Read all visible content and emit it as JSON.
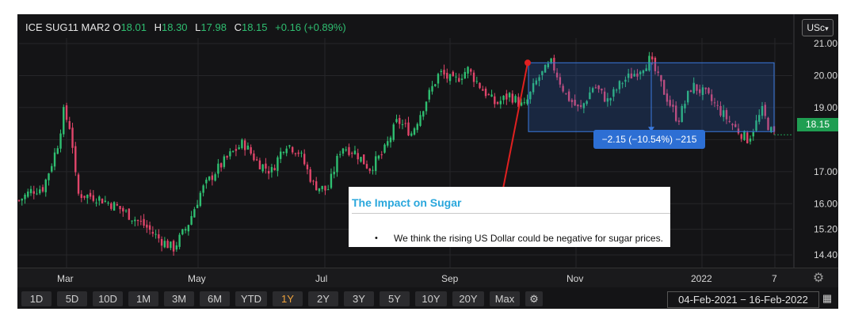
{
  "header": {
    "symbol": "ICE SUG11 MAR2",
    "open_label": "O",
    "open": "18.01",
    "high_label": "H",
    "high": "18.30",
    "low_label": "L",
    "low": "17.98",
    "close_label": "C",
    "close": "18.15",
    "change": "+0.16 (+0.89%)"
  },
  "unit_selector": {
    "label": "USc",
    "icon": "chevron-down-icon"
  },
  "last_price_tag": "18.15",
  "measure_label": "−2.15 (−10.54%) −215",
  "annotation": {
    "title": "The Impact on Sugar",
    "bullet_char": "•",
    "bullet_text": "We think the rising US Dollar could be negative for sugar prices."
  },
  "x_axis_labels": [
    "Mar",
    "May",
    "Jul",
    "Sep",
    "Nov",
    "2022",
    "7"
  ],
  "range_buttons": [
    "1D",
    "5D",
    "10D",
    "1M",
    "3M",
    "6M",
    "YTD",
    "1Y",
    "2Y",
    "3Y",
    "5Y",
    "10Y",
    "20Y",
    "Max"
  ],
  "active_range": "1Y",
  "date_range": "04-Feb-2021  −  16-Feb-2022",
  "colors": {
    "up": "#2fbf71",
    "down": "#e0456a",
    "background": "#141416",
    "measure": "#2d6fd4",
    "trendline": "#e02020",
    "note_title": "#2aa7dc"
  },
  "chart_data": {
    "type": "line",
    "style": "candlestick",
    "title": "",
    "xlabel": "",
    "ylabel": "",
    "y_ticks": [
      14.4,
      15.2,
      16.0,
      17.0,
      18.0,
      19.0,
      20.0,
      21.0
    ],
    "y_tick_labels": [
      "14.40",
      "15.20",
      "16.00",
      "17.00",
      "",
      "19.00",
      "20.00",
      "21.00"
    ],
    "ylim": [
      14.1,
      21.4
    ],
    "grid": true,
    "x_labels": [
      "Mar",
      "May",
      "Jul",
      "Sep",
      "Nov",
      "2022",
      "7"
    ],
    "close_series": [
      {
        "x": "2021-02-04",
        "y": 16.1
      },
      {
        "x": "2021-02-10",
        "y": 16.4
      },
      {
        "x": "2021-02-16",
        "y": 16.5
      },
      {
        "x": "2021-02-20",
        "y": 17.2
      },
      {
        "x": "2021-02-24",
        "y": 18.0
      },
      {
        "x": "2021-02-26",
        "y": 18.9
      },
      {
        "x": "2021-03-02",
        "y": 18.3
      },
      {
        "x": "2021-03-05",
        "y": 16.3
      },
      {
        "x": "2021-03-15",
        "y": 16.2
      },
      {
        "x": "2021-03-25",
        "y": 15.9
      },
      {
        "x": "2021-04-01",
        "y": 15.6
      },
      {
        "x": "2021-04-08",
        "y": 15.3
      },
      {
        "x": "2021-04-15",
        "y": 14.9
      },
      {
        "x": "2021-04-22",
        "y": 14.6
      },
      {
        "x": "2021-04-29",
        "y": 15.3
      },
      {
        "x": "2021-05-06",
        "y": 16.4
      },
      {
        "x": "2021-05-13",
        "y": 17.0
      },
      {
        "x": "2021-05-20",
        "y": 17.5
      },
      {
        "x": "2021-05-27",
        "y": 17.9
      },
      {
        "x": "2021-06-03",
        "y": 17.3
      },
      {
        "x": "2021-06-10",
        "y": 17.0
      },
      {
        "x": "2021-06-17",
        "y": 17.9
      },
      {
        "x": "2021-06-24",
        "y": 17.6
      },
      {
        "x": "2021-07-01",
        "y": 16.6
      },
      {
        "x": "2021-07-08",
        "y": 16.4
      },
      {
        "x": "2021-07-15",
        "y": 17.8
      },
      {
        "x": "2021-07-22",
        "y": 17.6
      },
      {
        "x": "2021-07-29",
        "y": 17.1
      },
      {
        "x": "2021-08-05",
        "y": 17.6
      },
      {
        "x": "2021-08-12",
        "y": 18.6
      },
      {
        "x": "2021-08-19",
        "y": 18.2
      },
      {
        "x": "2021-08-26",
        "y": 19.2
      },
      {
        "x": "2021-09-02",
        "y": 20.1
      },
      {
        "x": "2021-09-09",
        "y": 19.8
      },
      {
        "x": "2021-09-16",
        "y": 20.2
      },
      {
        "x": "2021-09-23",
        "y": 19.6
      },
      {
        "x": "2021-09-30",
        "y": 19.1
      },
      {
        "x": "2021-10-07",
        "y": 19.4
      },
      {
        "x": "2021-10-14",
        "y": 19.0
      },
      {
        "x": "2021-10-21",
        "y": 19.9
      },
      {
        "x": "2021-10-28",
        "y": 20.4
      },
      {
        "x": "2021-11-04",
        "y": 19.4
      },
      {
        "x": "2021-11-11",
        "y": 18.9
      },
      {
        "x": "2021-11-18",
        "y": 19.7
      },
      {
        "x": "2021-11-25",
        "y": 19.2
      },
      {
        "x": "2021-12-02",
        "y": 19.8
      },
      {
        "x": "2021-12-09",
        "y": 20.1
      },
      {
        "x": "2021-12-16",
        "y": 20.5
      },
      {
        "x": "2021-12-23",
        "y": 19.5
      },
      {
        "x": "2021-12-30",
        "y": 18.6
      },
      {
        "x": "2022-01-06",
        "y": 19.7
      },
      {
        "x": "2022-01-13",
        "y": 19.4
      },
      {
        "x": "2022-01-20",
        "y": 18.9
      },
      {
        "x": "2022-01-27",
        "y": 18.4
      },
      {
        "x": "2022-02-03",
        "y": 18.0
      },
      {
        "x": "2022-02-10",
        "y": 18.9
      },
      {
        "x": "2022-02-14",
        "y": 18.3
      },
      {
        "x": "2022-02-16",
        "y": 18.15
      }
    ],
    "last_price": 18.15,
    "measure": {
      "from_price": 20.4,
      "to_price": 18.25,
      "change": "−2.15 (−10.54%) −215"
    }
  }
}
